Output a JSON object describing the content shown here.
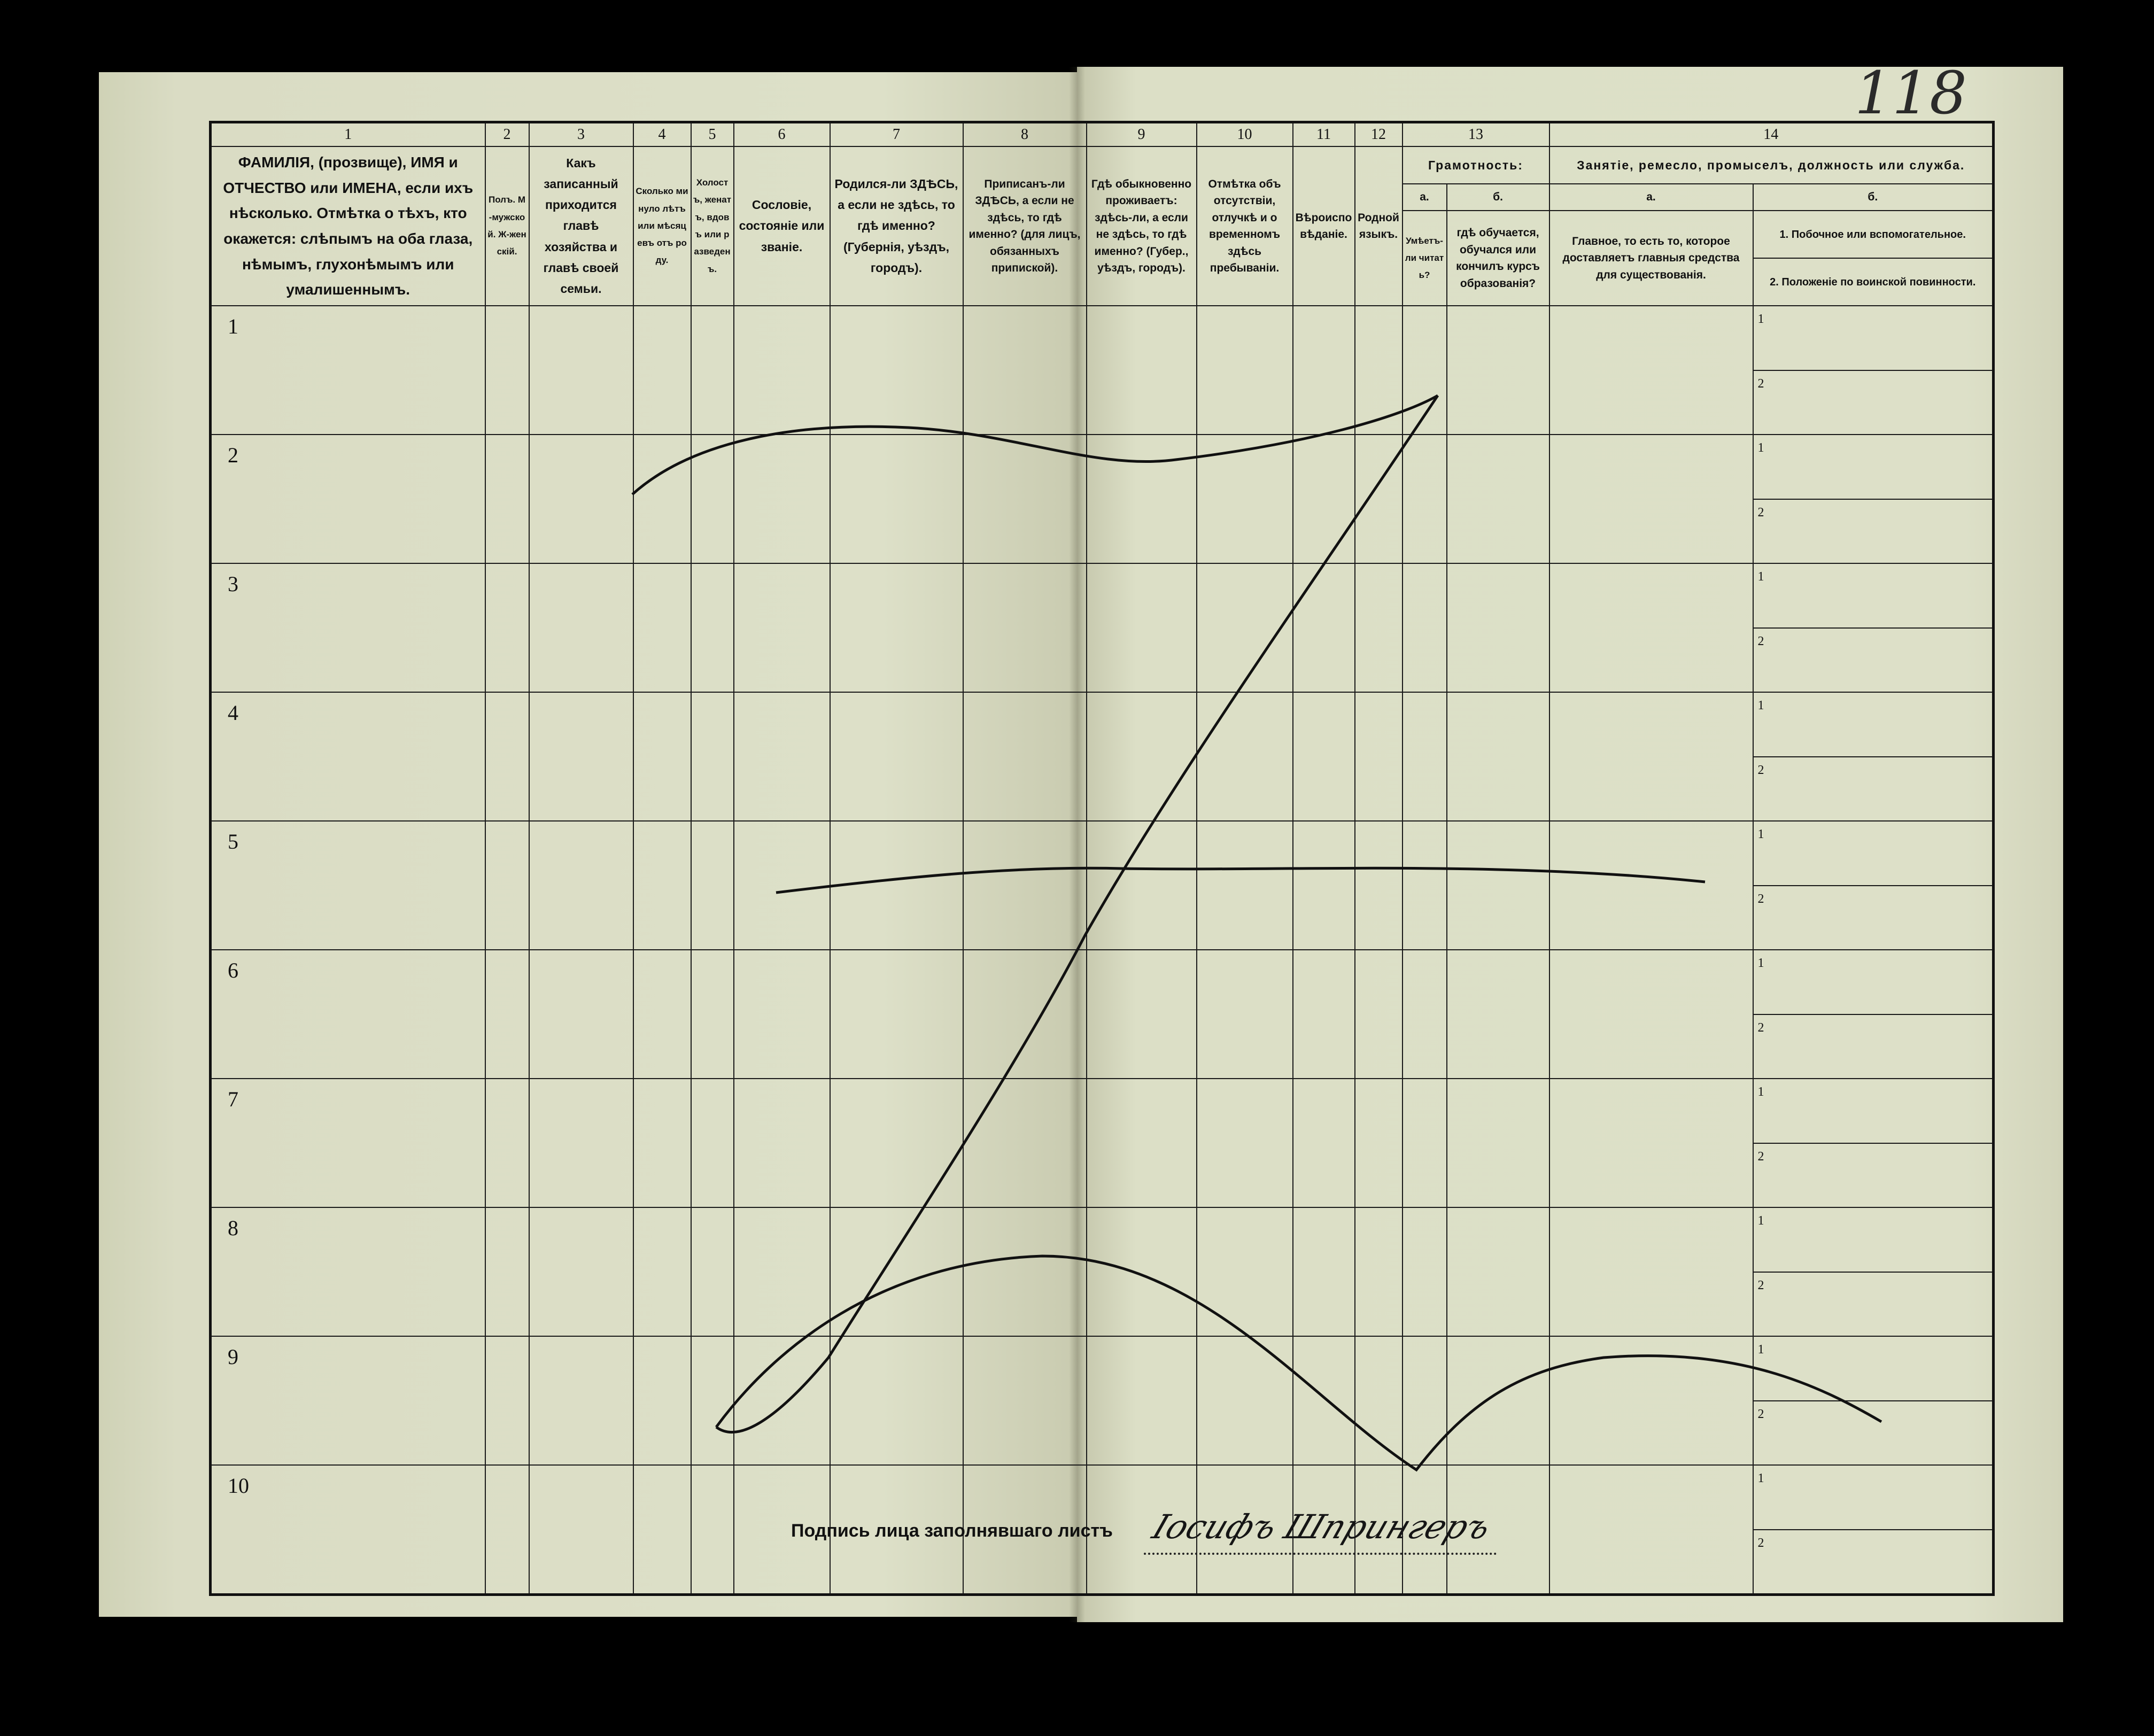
{
  "page_number": "118",
  "header_numbers": [
    "1",
    "2",
    "3",
    "4",
    "5",
    "6",
    "7",
    "8",
    "9",
    "10",
    "11",
    "12",
    "13",
    "14"
  ],
  "columns": {
    "c1": "ФАМИЛІЯ, (прозвище), ИМЯ и ОТЧЕСТВО или ИМЕНА, если ихъ нѣсколько. Отмѣтка о тѣхъ, кто окажется: слѣпымъ на оба глаза, нѣмымъ, глухонѣмымъ или умалишеннымъ.",
    "c2": "Полъ. М-мужской. Ж-женскій.",
    "c3": "Какъ записанный приходится главѣ хозяйства и главѣ своей семьи.",
    "c4": "Сколько минуло лѣтъ или мѣсяцевъ отъ роду.",
    "c5": "Холостъ, женатъ, вдовъ или разведенъ.",
    "c6": "Сословіе, состояніе или званіе.",
    "c7": "Родился-ли ЗДѢСЬ, а если не здѣсь, то гдѣ именно? (Губернія, уѣздъ, городъ).",
    "c8": "Приписанъ-ли ЗДѢСЬ, а если не здѣсь, то гдѣ именно? (для лицъ, обязанныхъ припиской).",
    "c9": "Гдѣ обыкновенно проживаетъ: здѣсь-ли, а если не здѣсь, то гдѣ именно? (Губер., уѣздъ, городъ).",
    "c10": "Отмѣтка объ отсутствіи, отлучкѣ и о временномъ здѣсь пребываніи.",
    "c11": "Вѣроисповѣданіе.",
    "c12": "Родной языкъ.",
    "c13_title": "Грамотность:",
    "c13a_label": "а.",
    "c13b_label": "б.",
    "c13a": "Умѣетъ-ли читать?",
    "c13b": "гдѣ обучается, обучался или кончилъ курсъ образованія?",
    "c14_title": "Занятіе, ремесло, промыселъ, должность или служба.",
    "c14a_label": "а.",
    "c14b_label": "б.",
    "c14a": "Главное, то есть то, которое доставляетъ главныя средства для существованія.",
    "c14b_1": "1. Побочное или вспомогательное.",
    "c14b_2": "2. Положеніе по воинской повинности."
  },
  "rows": [
    "1",
    "2",
    "3",
    "4",
    "5",
    "6",
    "7",
    "8",
    "9",
    "10"
  ],
  "sub_rows": [
    "1",
    "2"
  ],
  "signature_label": "Подпись лица заполнявшаго листъ",
  "signature": "Іосифъ Шпрингеръ"
}
